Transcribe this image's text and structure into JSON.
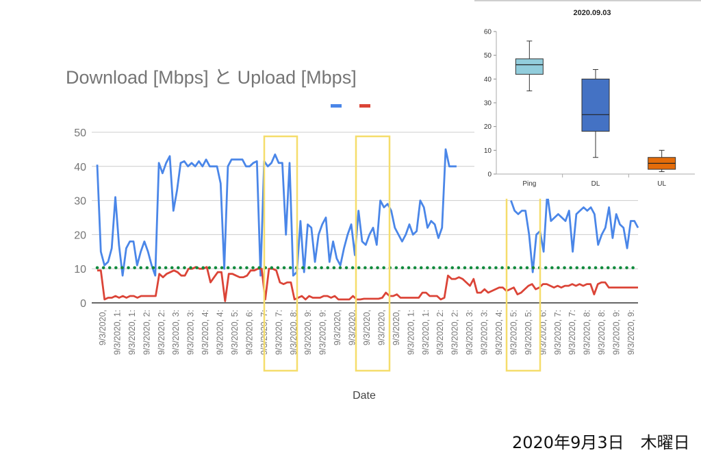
{
  "caption": "2020年9月3日　木曜日",
  "chart_data": [
    {
      "type": "line",
      "title": "Download [Mbps] と Upload [Mbps]",
      "xlabel": "Date",
      "ylabel": "",
      "ylim": [
        0,
        50
      ],
      "yticks": [
        0,
        10,
        20,
        30,
        40,
        50
      ],
      "grid": true,
      "legend": "top-right",
      "tick_labels": [
        "9/3/2020,",
        "9/3/2020, 1:",
        "9/3/2020, 1:",
        "9/3/2020, 2:",
        "9/3/2020, 2:",
        "9/3/2020, 3:",
        "9/3/2020, 3:",
        "9/3/2020, 4:",
        "9/3/2020, 4:",
        "9/3/2020, 5:",
        "9/3/2020, 6:",
        "9/3/2020, 7:",
        "9/3/2020, 7:",
        "9/3/2020, 8:",
        "9/3/2020, 9:",
        "9/3/2020, 9:",
        "9/3/2020,",
        "9/3/2020,",
        "9/3/2020,",
        "9/3/2020,",
        "9/3/2020,",
        "9/3/2020, 1:",
        "9/3/2020, 1:",
        "9/3/2020, 2:",
        "9/3/2020, 2:",
        "9/3/2020, 3:",
        "9/3/2020, 3:",
        "9/3/2020, 4:",
        "9/3/2020, 5:",
        "9/3/2020, 5:",
        "9/3/2020, 6:",
        "9/3/2020, 7:",
        "9/3/2020, 7:",
        "9/3/2020, 8:",
        "9/3/2020, 8:",
        "9/3/2020, 9:",
        "9/3/2020, 9:"
      ],
      "series": [
        {
          "color": "#4a86e8",
          "values": [
            40.5,
            15,
            11,
            12,
            16,
            31,
            17,
            8,
            16,
            18,
            18,
            11,
            15,
            18,
            15,
            11,
            8,
            41,
            38,
            41,
            43,
            27,
            33,
            41,
            41.5,
            40,
            41,
            40,
            41.5,
            40,
            42,
            40,
            40,
            40,
            35,
            10,
            40,
            42,
            42,
            42,
            42,
            40,
            40,
            41,
            41.5,
            8,
            41.5,
            40,
            41,
            43.5,
            41,
            41,
            20,
            41,
            8,
            9,
            24,
            9,
            23,
            22,
            12,
            20,
            23,
            25,
            12,
            18,
            13,
            11,
            16,
            20,
            23,
            14,
            27,
            18,
            17,
            20,
            22,
            17,
            30,
            28,
            29,
            27,
            22,
            20,
            18,
            20,
            23,
            20,
            21,
            30,
            28,
            22,
            24,
            23,
            19,
            22,
            45,
            40,
            40,
            40,
            null,
            null,
            null,
            null,
            null,
            null,
            null,
            null,
            null,
            null,
            null,
            null,
            null,
            null,
            30,
            27,
            26,
            27,
            27,
            20,
            9,
            20,
            21,
            15,
            32,
            24,
            25,
            26,
            25,
            24,
            27,
            15,
            26,
            27,
            28,
            27,
            28,
            26,
            17,
            20,
            22,
            28,
            19,
            26,
            23,
            22,
            16,
            24,
            24,
            22
          ]
        },
        {
          "color": "#db4437",
          "values": [
            9.5,
            9.5,
            1,
            1.5,
            1.5,
            2,
            1.5,
            2,
            1.5,
            2,
            2,
            1.5,
            2,
            2,
            2,
            2,
            2,
            8.5,
            7.5,
            8.5,
            9,
            9.5,
            9,
            8,
            8,
            10,
            10,
            10.5,
            10,
            10,
            10.5,
            6,
            7.5,
            9,
            9,
            0.5,
            8.5,
            8.5,
            8,
            7.5,
            7.5,
            8,
            9.5,
            9.5,
            10,
            10,
            1,
            10,
            10,
            9.5,
            6,
            5.5,
            6,
            6,
            1,
            1.5,
            2,
            1,
            2,
            1.5,
            1.5,
            1.5,
            2,
            2,
            1.5,
            2,
            1,
            1,
            1,
            1,
            2,
            1,
            1,
            1.2,
            1.2,
            1.2,
            1.2,
            1.2,
            1.5,
            3,
            2,
            2,
            2.5,
            1.5,
            1.5,
            1.5,
            1.5,
            1.5,
            1.5,
            3,
            3,
            2,
            2,
            2,
            1,
            1.5,
            8,
            7,
            7,
            7.5,
            7,
            6,
            5,
            7,
            3,
            3,
            4,
            3,
            3.5,
            4,
            4.5,
            4.5,
            3.5,
            4,
            4.5,
            2.5,
            3,
            4,
            5,
            5.5,
            4,
            4.5,
            5.5,
            5.5,
            5,
            4.5,
            5,
            4.5,
            5,
            5,
            5.5,
            5,
            5.5,
            5,
            5.5,
            5.5,
            2.5,
            5.5,
            6,
            6,
            4.5,
            4.5,
            4.5,
            4.5,
            4.5,
            4.5,
            4.5,
            4.5,
            4.5
          ]
        },
        {
          "color": "#0f8a3c",
          "style": "dotted",
          "values": [
            10.3,
            10.3
          ]
        }
      ]
    },
    {
      "type": "box",
      "title": "2020.09.03",
      "categories": [
        "Ping",
        "DL",
        "UL"
      ],
      "ylim": [
        0,
        60
      ],
      "yticks": [
        0,
        10,
        20,
        30,
        40,
        50,
        60
      ],
      "boxes": [
        {
          "name": "Ping",
          "min": 35,
          "q1": 42,
          "median": 46,
          "q3": 48.5,
          "max": 56,
          "color": "#92cddc"
        },
        {
          "name": "DL",
          "min": 7,
          "q1": 18,
          "median": 25,
          "q3": 40,
          "max": 44,
          "color": "#4472c4"
        },
        {
          "name": "UL",
          "min": 1,
          "q1": 2,
          "median": 4.5,
          "q3": 7,
          "max": 10,
          "color": "#e46c0a"
        }
      ]
    }
  ]
}
